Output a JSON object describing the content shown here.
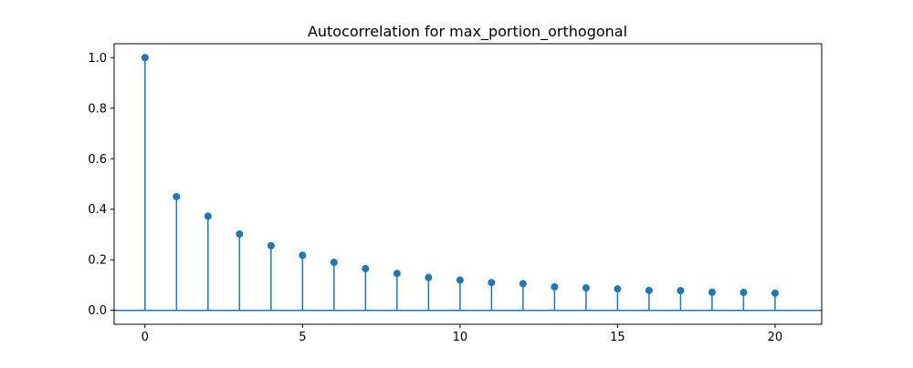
{
  "chart_data": {
    "type": "stem",
    "title": "Autocorrelation for max_portion_orthogonal",
    "xlabel": "",
    "ylabel": "",
    "x": [
      0,
      1,
      2,
      3,
      4,
      5,
      6,
      7,
      8,
      9,
      10,
      11,
      12,
      13,
      14,
      15,
      16,
      17,
      18,
      19,
      20
    ],
    "values": [
      1.0,
      0.45,
      0.373,
      0.302,
      0.256,
      0.218,
      0.19,
      0.165,
      0.146,
      0.13,
      0.12,
      0.11,
      0.106,
      0.093,
      0.089,
      0.085,
      0.079,
      0.078,
      0.072,
      0.071,
      0.068
    ],
    "xlim": [
      -0.98,
      21.48
    ],
    "ylim": [
      -0.055,
      1.055
    ],
    "xticks": [
      0,
      5,
      10,
      15,
      20
    ],
    "yticks": [
      0.0,
      0.2,
      0.4,
      0.6,
      0.8,
      1.0
    ],
    "xtick_labels": [
      "0",
      "5",
      "10",
      "15",
      "20"
    ],
    "ytick_labels": [
      "0.0",
      "0.2",
      "0.4",
      "0.6",
      "0.8",
      "1.0"
    ],
    "grid": false,
    "baseline": 0,
    "confidence_band": [
      -0.0,
      0.0
    ],
    "colors": {
      "stem": "#1f77b4",
      "marker": "#1f77b4",
      "baseline": "#1f77b4",
      "band": "#1f77b4",
      "axes": "#000000"
    }
  }
}
